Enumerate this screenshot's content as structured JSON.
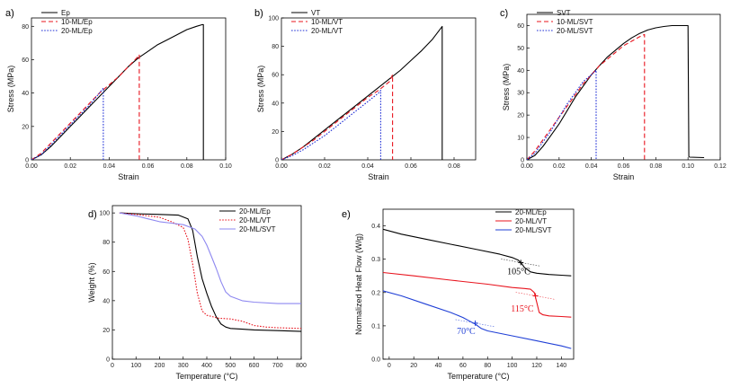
{
  "chart_data": [
    {
      "id": "a",
      "type": "line",
      "panel_label": "a)",
      "xlabel": "Strain",
      "ylabel": "Stress (MPa)",
      "xlim": [
        0,
        0.1
      ],
      "ylim": [
        0,
        85
      ],
      "xticks": [
        0.0,
        0.02,
        0.04,
        0.06,
        0.08,
        0.1
      ],
      "xtick_labels": [
        "0.00",
        "0.02",
        "0.04",
        "0.06",
        "0.08",
        "0.10"
      ],
      "yticks": [
        0,
        20,
        40,
        60,
        80
      ],
      "ytick_labels": [
        "0",
        "20",
        "40",
        "60",
        "80"
      ],
      "legend_position": "top-left",
      "series": [
        {
          "name": "Ep",
          "color": "#000000",
          "dash": "solid",
          "x": [
            0,
            0.005,
            0.01,
            0.015,
            0.02,
            0.025,
            0.03,
            0.035,
            0.04,
            0.045,
            0.05,
            0.055,
            0.06,
            0.065,
            0.07,
            0.075,
            0.08,
            0.085,
            0.088,
            0.0885,
            0.0885
          ],
          "y": [
            0,
            3,
            8,
            14,
            20,
            26,
            32,
            38,
            44,
            50,
            56,
            61,
            65,
            69,
            72,
            75,
            78,
            80,
            81,
            81,
            0
          ]
        },
        {
          "name": "10-ML/Ep",
          "color": "#e8141e",
          "dash": "dashed",
          "x": [
            0,
            0.005,
            0.01,
            0.015,
            0.02,
            0.025,
            0.03,
            0.035,
            0.04,
            0.045,
            0.05,
            0.055,
            0.0555,
            0.0555
          ],
          "y": [
            0,
            4,
            10,
            16,
            22,
            28,
            34,
            40,
            45,
            50,
            56,
            62,
            63,
            0
          ]
        },
        {
          "name": "20-ML/Ep",
          "color": "#1f2fd6",
          "dash": "dotted",
          "x": [
            0,
            0.005,
            0.01,
            0.015,
            0.02,
            0.025,
            0.03,
            0.035,
            0.037,
            0.037
          ],
          "y": [
            0,
            3,
            9,
            15,
            21,
            27,
            33,
            40,
            43,
            0
          ]
        }
      ]
    },
    {
      "id": "b",
      "type": "line",
      "panel_label": "b)",
      "xlabel": "Strain",
      "ylabel": "Stress (MPa)",
      "xlim": [
        0,
        0.09
      ],
      "ylim": [
        0,
        100
      ],
      "xticks": [
        0.0,
        0.02,
        0.04,
        0.06,
        0.08
      ],
      "xtick_labels": [
        "0.00",
        "0.02",
        "0.04",
        "0.06",
        "0.08"
      ],
      "yticks": [
        0,
        20,
        40,
        60,
        80,
        100
      ],
      "ytick_labels": [
        "0",
        "20",
        "40",
        "60",
        "80",
        "100"
      ],
      "legend_position": "top-left",
      "series": [
        {
          "name": "VT",
          "color": "#000000",
          "dash": "solid",
          "x": [
            0,
            0.005,
            0.01,
            0.015,
            0.02,
            0.025,
            0.03,
            0.035,
            0.04,
            0.045,
            0.05,
            0.055,
            0.06,
            0.065,
            0.07,
            0.074,
            0.0745,
            0.0745
          ],
          "y": [
            0,
            4,
            9,
            15,
            21,
            27,
            33,
            39,
            45,
            51,
            57,
            63,
            70,
            77,
            85,
            93,
            94,
            0
          ]
        },
        {
          "name": "10-ML/VT",
          "color": "#e8141e",
          "dash": "dashed",
          "x": [
            0,
            0.005,
            0.01,
            0.015,
            0.02,
            0.025,
            0.03,
            0.035,
            0.04,
            0.045,
            0.05,
            0.0515,
            0.0515
          ],
          "y": [
            0,
            4,
            9,
            14,
            20,
            26,
            32,
            38,
            44,
            49,
            55,
            60,
            0
          ]
        },
        {
          "name": "20-ML/VT",
          "color": "#1f2fd6",
          "dash": "dotted",
          "x": [
            0,
            0.005,
            0.01,
            0.015,
            0.02,
            0.025,
            0.03,
            0.035,
            0.04,
            0.045,
            0.046,
            0.046
          ],
          "y": [
            0,
            3,
            7,
            12,
            17,
            23,
            29,
            35,
            41,
            47,
            49,
            0
          ]
        }
      ]
    },
    {
      "id": "c",
      "type": "line",
      "panel_label": "c)",
      "xlabel": "Strain",
      "ylabel": "Stress (MPa)",
      "xlim": [
        0,
        0.12
      ],
      "ylim": [
        0,
        65
      ],
      "xticks": [
        0.0,
        0.02,
        0.04,
        0.06,
        0.08,
        0.1,
        0.12
      ],
      "xtick_labels": [
        "0.00",
        "0.02",
        "0.04",
        "0.06",
        "0.08",
        "0.10",
        "0.12"
      ],
      "yticks": [
        0,
        10,
        20,
        30,
        40,
        50,
        60
      ],
      "ytick_labels": [
        "0",
        "10",
        "20",
        "30",
        "40",
        "50",
        "60"
      ],
      "legend_position": "top-right",
      "series": [
        {
          "name": "SVT",
          "color": "#000000",
          "dash": "solid",
          "x": [
            0,
            0.005,
            0.01,
            0.015,
            0.02,
            0.025,
            0.03,
            0.035,
            0.04,
            0.045,
            0.05,
            0.055,
            0.06,
            0.065,
            0.07,
            0.075,
            0.08,
            0.085,
            0.09,
            0.095,
            0.1,
            0.1005,
            0.101,
            0.11
          ],
          "y": [
            0,
            2,
            6,
            11,
            16,
            22,
            28,
            33,
            38,
            42,
            46,
            49,
            52,
            54.5,
            56.5,
            58,
            59,
            59.6,
            60,
            60,
            60,
            1.5,
            1.2,
            1
          ]
        },
        {
          "name": "10-ML/SVT",
          "color": "#e8141e",
          "dash": "dashed",
          "x": [
            0,
            0.005,
            0.01,
            0.015,
            0.02,
            0.025,
            0.03,
            0.035,
            0.04,
            0.045,
            0.05,
            0.055,
            0.06,
            0.065,
            0.07,
            0.073,
            0.073
          ],
          "y": [
            0,
            4,
            9,
            14,
            19,
            24,
            29,
            34,
            38,
            42,
            45,
            48,
            51,
            53,
            55,
            56,
            0
          ]
        },
        {
          "name": "20-ML/SVT",
          "color": "#1f2fd6",
          "dash": "dotted",
          "x": [
            0,
            0.005,
            0.01,
            0.015,
            0.02,
            0.025,
            0.03,
            0.035,
            0.04,
            0.043,
            0.043
          ],
          "y": [
            0,
            3,
            8,
            13,
            19,
            25,
            30,
            35,
            38,
            40,
            0
          ]
        }
      ]
    },
    {
      "id": "d",
      "type": "line",
      "panel_label": "d)",
      "xlabel": "Temperature (°C)",
      "ylabel": "Weight (%)",
      "xlim": [
        0,
        800
      ],
      "ylim": [
        0,
        105
      ],
      "xticks": [
        0,
        100,
        200,
        300,
        400,
        500,
        600,
        700,
        800
      ],
      "xtick_labels": [
        "0",
        "100",
        "200",
        "300",
        "400",
        "500",
        "600",
        "700",
        "800"
      ],
      "yticks": [
        0,
        20,
        40,
        60,
        80,
        100
      ],
      "ytick_labels": [
        "0",
        "20",
        "40",
        "60",
        "80",
        "100"
      ],
      "legend_position": "top-right",
      "series": [
        {
          "name": "20-ML/Ep",
          "color": "#000000",
          "dash": "solid",
          "x": [
            30,
            100,
            200,
            280,
            320,
            340,
            360,
            380,
            400,
            420,
            440,
            460,
            480,
            500,
            550,
            600,
            700,
            800
          ],
          "y": [
            100,
            99.5,
            99,
            98.5,
            96,
            88,
            70,
            55,
            45,
            36,
            29,
            24,
            22,
            21,
            20.5,
            20,
            19.5,
            19
          ]
        },
        {
          "name": "20-ML/VT",
          "color": "#e8141e",
          "dash": "dotted",
          "x": [
            30,
            100,
            200,
            250,
            300,
            320,
            340,
            360,
            380,
            400,
            450,
            500,
            550,
            600,
            650,
            700,
            800
          ],
          "y": [
            100,
            99,
            97,
            94,
            90,
            82,
            65,
            45,
            33,
            30,
            28,
            27.5,
            26,
            23,
            22,
            21.5,
            21
          ]
        },
        {
          "name": "20-ML/SVT",
          "color": "#8e88f0",
          "dash": "solid",
          "x": [
            30,
            100,
            150,
            200,
            250,
            300,
            350,
            380,
            400,
            420,
            440,
            460,
            480,
            500,
            550,
            600,
            700,
            800
          ],
          "y": [
            100,
            98,
            96,
            94,
            93,
            92,
            89,
            84,
            78,
            70,
            62,
            53,
            46,
            43,
            40,
            39,
            38,
            38
          ]
        }
      ]
    },
    {
      "id": "e",
      "type": "line",
      "panel_label": "e)",
      "xlabel": "Temperature (°C)",
      "ylabel": "Normalized Heat Flow (W/g)",
      "xlim": [
        -5,
        150
      ],
      "ylim": [
        0,
        0.45
      ],
      "xticks": [
        0,
        20,
        40,
        60,
        80,
        100,
        120,
        140
      ],
      "xtick_labels": [
        "0",
        "20",
        "40",
        "60",
        "80",
        "100",
        "120",
        "140"
      ],
      "yticks": [
        0.0,
        0.1,
        0.2,
        0.3,
        0.4
      ],
      "ytick_labels": [
        "0.0",
        "0.1",
        "0.2",
        "0.3",
        "0.4"
      ],
      "legend_position": "top-right",
      "series": [
        {
          "name": "20-ML/Ep",
          "color": "#000000",
          "dash": "solid",
          "x": [
            -5,
            10,
            30,
            50,
            70,
            90,
            100,
            105,
            108,
            110,
            115,
            120,
            130,
            140,
            148
          ],
          "y": [
            0.39,
            0.375,
            0.36,
            0.345,
            0.33,
            0.315,
            0.305,
            0.297,
            0.285,
            0.275,
            0.262,
            0.258,
            0.254,
            0.252,
            0.25
          ]
        },
        {
          "name": "20-ML/VT",
          "color": "#e8141e",
          "dash": "solid",
          "x": [
            -5,
            20,
            50,
            80,
            100,
            110,
            115,
            118,
            120,
            122,
            125,
            130,
            140,
            148
          ],
          "y": [
            0.26,
            0.25,
            0.237,
            0.225,
            0.215,
            0.212,
            0.21,
            0.2,
            0.17,
            0.14,
            0.133,
            0.13,
            0.128,
            0.126
          ]
        },
        {
          "name": "20-ML/SVT",
          "color": "#1f3fd6",
          "dash": "solid",
          "x": [
            -5,
            10,
            30,
            50,
            60,
            65,
            70,
            75,
            80,
            100,
            120,
            140,
            148
          ],
          "y": [
            0.205,
            0.19,
            0.165,
            0.14,
            0.125,
            0.115,
            0.105,
            0.092,
            0.085,
            0.07,
            0.055,
            0.04,
            0.032
          ]
        }
      ],
      "annotations": [
        {
          "text": "105°C",
          "x": 96,
          "y": 0.255,
          "color": "#000000",
          "marker_x": 107,
          "marker_y": 0.29
        },
        {
          "text": "115°C",
          "x": 99,
          "y": 0.143,
          "color": "#e8141e",
          "marker_x": 119,
          "marker_y": 0.19
        },
        {
          "text": "70°C",
          "x": 55,
          "y": 0.075,
          "color": "#1f3fd6",
          "marker_x": 70,
          "marker_y": 0.108
        }
      ]
    }
  ]
}
